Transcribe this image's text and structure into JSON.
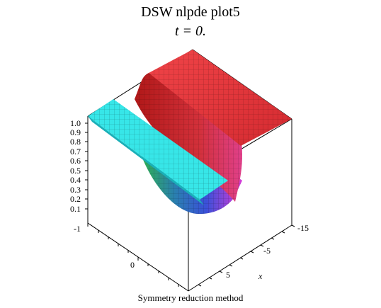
{
  "chart_data": {
    "type": "surface3d",
    "title": "DSW   nlpde   plot5",
    "subtitle": "t = 0.",
    "caption": "Symmetry  reduction method",
    "axes": {
      "z": {
        "range": [
          0.1,
          1.0
        ],
        "ticks": [
          "0.1",
          "0.2",
          "0.3",
          "0.4",
          "0.5",
          "0.6",
          "0.7",
          "0.8",
          "0.9",
          "1.0"
        ]
      },
      "y": {
        "ticks": [
          "-1",
          "0"
        ]
      },
      "x": {
        "label": "x",
        "ticks": [
          "-15",
          "-5",
          "5"
        ]
      }
    },
    "surface": {
      "description_levels": {
        "plateau_high": 1.0,
        "plateau_low": 0.55,
        "trough_min": 0.0
      },
      "colors": {
        "high_plateau": "#e8323a",
        "low_plateau": "#33e8e8",
        "trough_left": "#2fb34a",
        "trough_mid": "#3a50d8",
        "trough_right": "#d83ad8"
      }
    }
  }
}
